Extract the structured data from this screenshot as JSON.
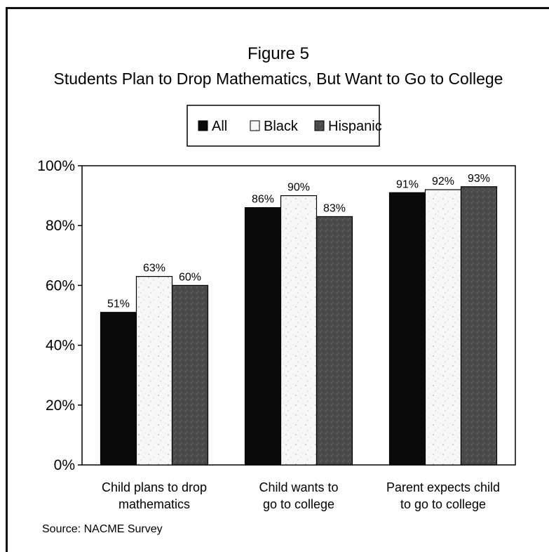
{
  "figure_label": "Figure 5",
  "source": "Source: NACME Survey",
  "colors": {
    "All": "#0a0a0a",
    "Black": "#f7f7f7",
    "Hispanic": "#4a4a4a"
  },
  "chart_data": {
    "type": "bar",
    "title": "Students Plan to Drop Mathematics, But Want to Go to College",
    "categories": [
      "Child plans to drop mathematics",
      "Child wants to go to college",
      "Parent expects child to go to college"
    ],
    "category_lines": [
      [
        "Child plans to drop",
        "mathematics"
      ],
      [
        "Child wants to",
        "go to college"
      ],
      [
        "Parent expects child",
        "to go to college"
      ]
    ],
    "series": [
      {
        "name": "All",
        "values": [
          51,
          86,
          91
        ],
        "labels": [
          "51%",
          "86%",
          "91%"
        ]
      },
      {
        "name": "Black",
        "values": [
          63,
          90,
          92
        ],
        "labels": [
          "63%",
          "90%",
          "92%"
        ]
      },
      {
        "name": "Hispanic",
        "values": [
          60,
          83,
          93
        ],
        "labels": [
          "60%",
          "83%",
          "93%"
        ]
      }
    ],
    "ylim": [
      0,
      100
    ],
    "yticks": [
      0,
      20,
      40,
      60,
      80,
      100
    ],
    "ytick_labels": [
      "0%",
      "20%",
      "40%",
      "60%",
      "80%",
      "100%"
    ],
    "legend_placement": "top-center",
    "grid": false
  }
}
